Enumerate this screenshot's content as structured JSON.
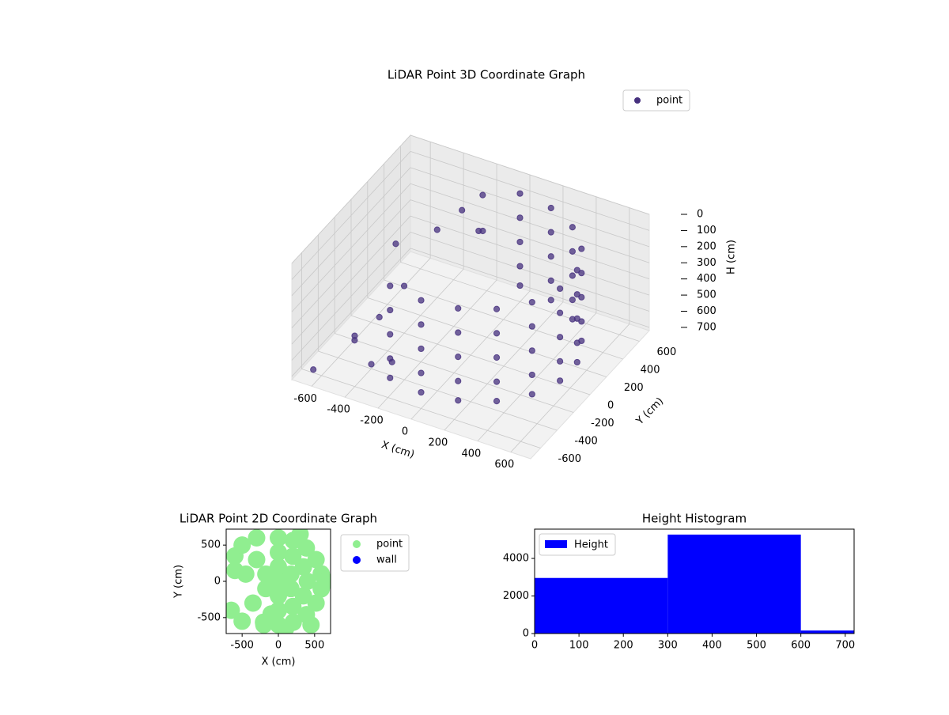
{
  "chart_data": [
    {
      "type": "scatter3d",
      "title": "LiDAR Point 3D Coordinate Graph",
      "x_label": "X (cm)",
      "y_label": "Y (cm)",
      "z_label": "H (cm)",
      "xlim": [
        -720,
        720
      ],
      "ylim": [
        -720,
        720
      ],
      "zlim": [
        0,
        720
      ],
      "z_inverted": true,
      "xticks": [
        -600,
        -400,
        -200,
        0,
        200,
        400,
        600
      ],
      "yticks": [
        -600,
        -400,
        -200,
        0,
        200,
        400,
        600
      ],
      "zticks": [
        0,
        100,
        200,
        300,
        400,
        500,
        600,
        700
      ],
      "grid": true,
      "legend": "upper right",
      "series": [
        {
          "name": "point",
          "color": "#46307e",
          "x": [
            -205,
            0,
            205,
            386,
            520,
            591,
            591,
            520,
            386,
            205,
            0,
            -205,
            0,
            205,
            386,
            520,
            591,
            591,
            520,
            386,
            205,
            0,
            -205,
            0,
            205,
            386,
            520,
            591,
            591,
            520,
            386,
            205,
            0,
            -205,
            0,
            205,
            386,
            520,
            591,
            591,
            520,
            386,
            205,
            0,
            -205,
            0,
            205,
            386,
            520,
            591,
            591,
            520,
            386,
            205,
            0,
            -550,
            -500,
            -450,
            -600,
            -400,
            -300,
            -200,
            -500,
            -350,
            -250,
            -650,
            -100,
            -150
          ],
          "y": [
            -564,
            -600,
            -564,
            -460,
            -300,
            -104,
            104,
            300,
            460,
            564,
            600,
            -564,
            -600,
            -564,
            -460,
            -300,
            -104,
            104,
            300,
            460,
            564,
            600,
            -564,
            -600,
            -564,
            -460,
            -300,
            -104,
            104,
            300,
            460,
            564,
            600,
            -564,
            -600,
            -564,
            -460,
            -300,
            -104,
            104,
            300,
            460,
            564,
            600,
            -564,
            -600,
            -564,
            -460,
            -300,
            -104,
            104,
            300,
            460,
            564,
            600,
            -300,
            -100,
            100,
            300,
            400,
            500,
            550,
            -400,
            -500,
            -450,
            -600,
            300,
            450
          ],
          "z": [
            50,
            50,
            50,
            50,
            50,
            50,
            50,
            50,
            50,
            50,
            50,
            200,
            200,
            200,
            200,
            200,
            200,
            200,
            200,
            200,
            200,
            200,
            350,
            350,
            350,
            350,
            350,
            350,
            350,
            350,
            350,
            350,
            350,
            500,
            500,
            500,
            500,
            500,
            500,
            500,
            500,
            500,
            500,
            500,
            620,
            620,
            620,
            620,
            620,
            620,
            620,
            620,
            620,
            620,
            620,
            650,
            600,
            500,
            400,
            300,
            200,
            100,
            550,
            620,
            600,
            700,
            150,
            250
          ]
        }
      ]
    },
    {
      "type": "scatter",
      "title": "LiDAR Point 2D Coordinate Graph",
      "x_label": "X (cm)",
      "y_label": "Y (cm)",
      "xlim": [
        -720,
        720
      ],
      "ylim": [
        -720,
        720
      ],
      "xticks": [
        -500,
        0,
        500
      ],
      "yticks": [
        -500,
        0,
        500
      ],
      "legend": "outside right",
      "series": [
        {
          "name": "point",
          "color": "#90ee90",
          "x": [
            -205,
            0,
            205,
            386,
            520,
            591,
            591,
            520,
            386,
            205,
            0,
            0,
            200,
            346,
            400,
            346,
            200,
            0,
            0,
            173,
            173,
            0,
            -173,
            -173,
            0,
            -600,
            -500,
            -300,
            -650,
            -500,
            -350,
            -200,
            -450,
            -600,
            -300,
            -100,
            650,
            450,
            300,
            100
          ],
          "y": [
            -564,
            -600,
            -564,
            -460,
            -300,
            -104,
            104,
            300,
            460,
            564,
            600,
            -400,
            -346,
            -200,
            0,
            200,
            346,
            400,
            -200,
            -100,
            100,
            200,
            100,
            -100,
            0,
            350,
            500,
            600,
            -400,
            -550,
            -300,
            -600,
            100,
            150,
            300,
            -450,
            0,
            -600,
            650,
            -650
          ]
        },
        {
          "name": "wall",
          "color": "#0000ff",
          "x": [],
          "y": []
        }
      ]
    },
    {
      "type": "histogram",
      "title": "Height Histogram",
      "bins": [
        0,
        300,
        600,
        720
      ],
      "counts": [
        2960,
        5270,
        160
      ],
      "xlim": [
        0,
        720
      ],
      "ylim": [
        0,
        5560
      ],
      "xticks": [
        0,
        100,
        200,
        300,
        400,
        500,
        600,
        700
      ],
      "yticks": [
        0,
        2000,
        4000
      ],
      "series_name": "Height",
      "color": "#0000ff",
      "legend": "upper left"
    }
  ]
}
